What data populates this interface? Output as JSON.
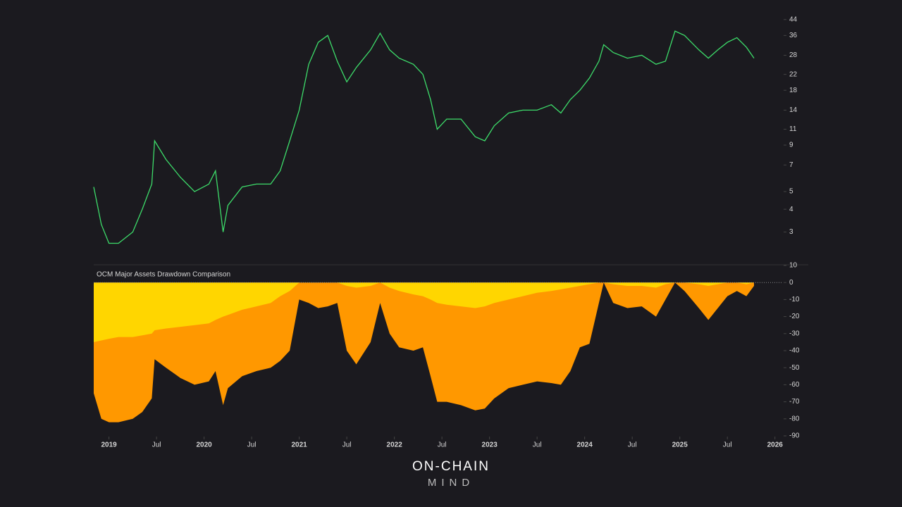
{
  "chart_data": [
    {
      "type": "line",
      "log_scale": true,
      "color": "#3ddc6a",
      "x": [
        2018.84,
        2018.92,
        2019.0,
        2019.1,
        2019.25,
        2019.35,
        2019.45,
        2019.48,
        2019.6,
        2019.75,
        2019.9,
        2020.05,
        2020.12,
        2020.2,
        2020.25,
        2020.4,
        2020.55,
        2020.7,
        2020.8,
        2020.9,
        2021.0,
        2021.1,
        2021.2,
        2021.3,
        2021.4,
        2021.5,
        2021.6,
        2021.75,
        2021.85,
        2021.95,
        2022.05,
        2022.2,
        2022.3,
        2022.38,
        2022.45,
        2022.55,
        2022.7,
        2022.85,
        2022.95,
        2023.05,
        2023.2,
        2023.35,
        2023.5,
        2023.65,
        2023.75,
        2023.85,
        2023.95,
        2024.05,
        2024.15,
        2024.2,
        2024.3,
        2024.45,
        2024.6,
        2024.75,
        2024.85,
        2024.95,
        2025.05,
        2025.2,
        2025.3,
        2025.4,
        2025.5,
        2025.6,
        2025.7,
        2025.78
      ],
      "values": [
        5.3,
        3.3,
        2.6,
        2.6,
        3.0,
        4.0,
        5.5,
        9.5,
        7.5,
        6.0,
        5.0,
        5.5,
        6.5,
        3.0,
        4.2,
        5.3,
        5.5,
        5.5,
        6.5,
        9.5,
        14,
        25,
        33,
        36,
        26,
        20,
        24,
        30,
        37,
        30,
        27,
        25,
        22,
        16,
        11,
        12.5,
        12.5,
        10,
        9.5,
        11.5,
        13.5,
        14,
        14,
        15,
        13.5,
        16,
        18,
        21,
        26,
        32,
        29,
        27,
        28,
        25,
        26,
        38,
        36,
        30,
        27,
        30,
        33,
        35,
        31,
        27
      ],
      "xlim": [
        2018.84,
        2025.78
      ],
      "ylim": [
        2,
        48
      ],
      "yticks": [
        3,
        4,
        5,
        7,
        9,
        11,
        14,
        18,
        22,
        28,
        36,
        44
      ]
    },
    {
      "type": "area",
      "title": "OCM Major Assets Drawdown Comparison",
      "x": [
        2018.84,
        2018.92,
        2019.0,
        2019.1,
        2019.25,
        2019.35,
        2019.45,
        2019.48,
        2019.6,
        2019.75,
        2019.9,
        2020.05,
        2020.12,
        2020.2,
        2020.25,
        2020.4,
        2020.55,
        2020.7,
        2020.8,
        2020.9,
        2021.0,
        2021.1,
        2021.2,
        2021.3,
        2021.4,
        2021.5,
        2021.6,
        2021.75,
        2021.85,
        2021.95,
        2022.05,
        2022.2,
        2022.3,
        2022.38,
        2022.45,
        2022.55,
        2022.7,
        2022.85,
        2022.95,
        2023.05,
        2023.2,
        2023.35,
        2023.5,
        2023.65,
        2023.75,
        2023.85,
        2023.95,
        2024.05,
        2024.15,
        2024.2,
        2024.3,
        2024.45,
        2024.6,
        2024.75,
        2024.85,
        2024.95,
        2025.05,
        2025.2,
        2025.3,
        2025.4,
        2025.5,
        2025.6,
        2025.7,
        2025.78
      ],
      "series": [
        {
          "color": "#ff9800",
          "values": [
            -65,
            -80,
            -82,
            -82,
            -80,
            -76,
            -68,
            -45,
            -50,
            -56,
            -60,
            -58,
            -52,
            -72,
            -62,
            -55,
            -52,
            -50,
            -46,
            -40,
            -10,
            -12,
            -15,
            -14,
            -12,
            -40,
            -48,
            -35,
            -12,
            -30,
            -38,
            -40,
            -38,
            -55,
            -70,
            -70,
            -72,
            -75,
            -74,
            -68,
            -62,
            -60,
            -58,
            -59,
            -60,
            -52,
            -38,
            -36,
            -12,
            0,
            -12,
            -15,
            -14,
            -20,
            -10,
            0,
            -5,
            -15,
            -22,
            -15,
            -8,
            -5,
            -8,
            -2
          ]
        },
        {
          "color": "#ffd600",
          "values": [
            -35,
            -34,
            -33,
            -32,
            -32,
            -31,
            -30,
            -28,
            -27,
            -26,
            -25,
            -24,
            -22,
            -20,
            -19,
            -16,
            -14,
            -12,
            -8,
            -5,
            0,
            0,
            0,
            0,
            0,
            -2,
            -3,
            -2,
            0,
            -3,
            -5,
            -7,
            -8,
            -10,
            -12,
            -13,
            -14,
            -15,
            -14,
            -12,
            -10,
            -8,
            -6,
            -5,
            -4,
            -3,
            -2,
            -1,
            0,
            0,
            -1,
            -2,
            -2,
            -3,
            -1,
            0,
            0,
            -1,
            -2,
            -1,
            0,
            0,
            -1,
            0
          ]
        }
      ],
      "xlim": [
        2018.84,
        2025.78
      ],
      "ylim": [
        -90,
        10
      ],
      "yticks": [
        10,
        0,
        -10,
        -20,
        -30,
        -40,
        -50,
        -60,
        -70,
        -80,
        -90
      ],
      "xticks": [
        {
          "value": 2019,
          "label": "2019"
        },
        {
          "value": 2019.5,
          "label": "Jul"
        },
        {
          "value": 2020,
          "label": "2020"
        },
        {
          "value": 2020.5,
          "label": "Jul"
        },
        {
          "value": 2021,
          "label": "2021"
        },
        {
          "value": 2021.5,
          "label": "Jul"
        },
        {
          "value": 2022,
          "label": "2022"
        },
        {
          "value": 2022.5,
          "label": "Jul"
        },
        {
          "value": 2023,
          "label": "2023"
        },
        {
          "value": 2023.5,
          "label": "Jul"
        },
        {
          "value": 2024,
          "label": "2024"
        },
        {
          "value": 2024.5,
          "label": "Jul"
        },
        {
          "value": 2025,
          "label": "2025"
        },
        {
          "value": 2025.5,
          "label": "Jul"
        },
        {
          "value": 2026,
          "label": "2026"
        }
      ]
    }
  ],
  "branding": {
    "line1": "ON-CHAIN",
    "line2": "MIND"
  }
}
